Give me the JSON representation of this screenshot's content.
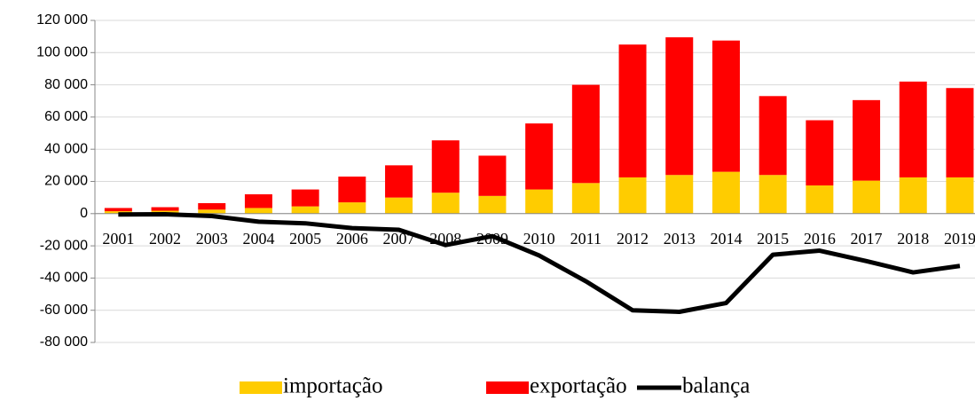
{
  "chart_data": {
    "type": "bar_line",
    "categories": [
      "2001",
      "2002",
      "2003",
      "2004",
      "2005",
      "2006",
      "2007",
      "2008",
      "2009",
      "2010",
      "2011",
      "2012",
      "2013",
      "2014",
      "2015",
      "2016",
      "2017",
      "2018",
      "2019"
    ],
    "series": [
      {
        "name": "importação",
        "color": "#ffcc00",
        "kind": "bar",
        "values": [
          1500,
          1800,
          2500,
          3500,
          4500,
          7000,
          10000,
          13000,
          11000,
          15000,
          19000,
          22500,
          24000,
          26000,
          24000,
          17500,
          20500,
          22500,
          22500
        ]
      },
      {
        "name": "exportação",
        "color": "#ff0000",
        "kind": "bar",
        "values": [
          2000,
          2200,
          4000,
          8500,
          10500,
          16000,
          20000,
          32500,
          25000,
          41000,
          61000,
          82500,
          85500,
          81500,
          49000,
          40500,
          50000,
          59500,
          55500
        ]
      },
      {
        "name": "balança",
        "color": "#000000",
        "kind": "line",
        "values": [
          -500,
          -400,
          -1500,
          -5000,
          -6000,
          -9000,
          -10000,
          -19500,
          -14000,
          -26000,
          -42000,
          -60000,
          -61000,
          -55500,
          -25500,
          -23000,
          -29500,
          -36500,
          -32500
        ]
      }
    ],
    "ylim": [
      -80000,
      120000
    ],
    "yticks": [
      {
        "value": -80000,
        "label": "-80 000"
      },
      {
        "value": -60000,
        "label": "-60 000"
      },
      {
        "value": -40000,
        "label": "-40 000"
      },
      {
        "value": -20000,
        "label": "-20 000"
      },
      0,
      {
        "value": 20000,
        "label": "20 000"
      },
      {
        "value": 40000,
        "label": "40 000"
      },
      {
        "value": 60000,
        "label": "60 000"
      },
      {
        "value": 80000,
        "label": "80 000"
      },
      {
        "value": 100000,
        "label": "100 000"
      },
      {
        "value": 120000,
        "label": "120 000"
      }
    ],
    "grid": true,
    "legend": "bottom"
  }
}
